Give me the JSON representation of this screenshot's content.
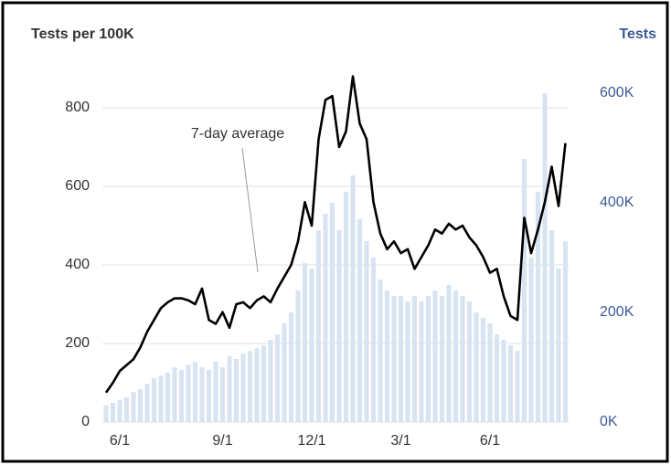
{
  "chart_data": {
    "type": "combo",
    "ylabel": "Tests per 100K",
    "y2label": "Tests",
    "annotation": "7-day average",
    "categories": [
      null,
      null,
      "6/1",
      null,
      null,
      null,
      null,
      null,
      null,
      null,
      null,
      null,
      null,
      null,
      null,
      null,
      null,
      "9/1",
      null,
      null,
      null,
      null,
      null,
      null,
      null,
      null,
      null,
      null,
      null,
      null,
      "12/1",
      null,
      null,
      null,
      null,
      null,
      null,
      null,
      null,
      null,
      null,
      null,
      null,
      "3/1",
      null,
      null,
      null,
      null,
      null,
      null,
      null,
      null,
      null,
      null,
      null,
      null,
      "6/1",
      null,
      null,
      null,
      null,
      null,
      null,
      null,
      null,
      null,
      null,
      null
    ],
    "series": [
      {
        "type": "bar",
        "axis": "y2",
        "color": "#d9e4f3",
        "values": [
          30000,
          35000,
          40000,
          45000,
          55000,
          60000,
          70000,
          80000,
          85000,
          90000,
          100000,
          95000,
          105000,
          110000,
          100000,
          95000,
          110000,
          100000,
          120000,
          115000,
          125000,
          130000,
          135000,
          140000,
          150000,
          160000,
          180000,
          200000,
          240000,
          290000,
          280000,
          350000,
          380000,
          400000,
          350000,
          420000,
          450000,
          370000,
          330000,
          300000,
          260000,
          240000,
          230000,
          230000,
          220000,
          230000,
          220000,
          230000,
          240000,
          230000,
          250000,
          240000,
          230000,
          220000,
          200000,
          190000,
          180000,
          160000,
          150000,
          140000,
          130000,
          480000,
          300000,
          420000,
          600000,
          350000,
          280000,
          330000
        ]
      },
      {
        "type": "line",
        "name": "7-day average",
        "color": "#000000",
        "values": [
          75,
          100,
          130,
          145,
          160,
          190,
          230,
          260,
          290,
          305,
          315,
          315,
          310,
          300,
          340,
          260,
          250,
          280,
          240,
          300,
          305,
          290,
          310,
          320,
          305,
          340,
          370,
          400,
          460,
          560,
          500,
          720,
          820,
          830,
          700,
          740,
          880,
          760,
          720,
          560,
          480,
          440,
          460,
          430,
          440,
          390,
          420,
          450,
          490,
          480,
          505,
          490,
          500,
          470,
          450,
          420,
          380,
          390,
          320,
          270,
          260,
          520,
          430,
          490,
          560,
          650,
          550,
          710
        ]
      }
    ],
    "ylim": [
      0,
      900
    ],
    "yticks": [
      0,
      200,
      400,
      600,
      800
    ],
    "y2lim": [
      0,
      645000
    ],
    "y2ticks": [
      {
        "value": 0,
        "label": "0K"
      },
      {
        "value": 200000,
        "label": "200K"
      },
      {
        "value": 400000,
        "label": "400K"
      },
      {
        "value": 600000,
        "label": "600K"
      }
    ],
    "grid": true
  }
}
